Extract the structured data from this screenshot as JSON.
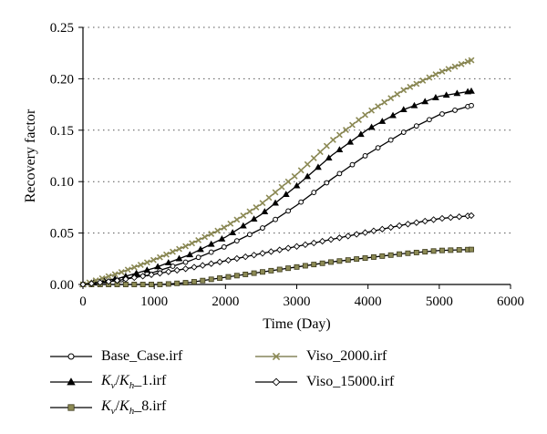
{
  "chart_data": {
    "type": "line",
    "xlabel": "Time (Day)",
    "ylabel": "Recovery factor",
    "xlim": [
      0,
      6000
    ],
    "ylim": [
      0,
      0.25
    ],
    "xticks": [
      0,
      1000,
      2000,
      3000,
      4000,
      5000,
      6000
    ],
    "yticks": [
      0.0,
      0.05,
      0.1,
      0.15,
      0.2,
      0.25
    ],
    "xtick_labels": [
      "0",
      "1000",
      "2000",
      "3000",
      "4000",
      "5000",
      "6000"
    ],
    "ytick_labels": [
      "0.00",
      "0.05",
      "0.10",
      "0.15",
      "0.20",
      "0.25"
    ],
    "grid": "horizontal dotted",
    "legend_position": "bottom",
    "series": [
      {
        "name": "Base_Case.irf",
        "marker": "circle",
        "marker_fill": "#ffffff",
        "color": "#000000",
        "x": [
          0,
          500,
          1000,
          1500,
          2000,
          2500,
          3000,
          3500,
          4000,
          4500,
          5000,
          5450
        ],
        "y": [
          0.0,
          0.004,
          0.012,
          0.023,
          0.037,
          0.054,
          0.077,
          0.103,
          0.127,
          0.148,
          0.165,
          0.174
        ]
      },
      {
        "name": "K_v/K_h_1.irf",
        "marker": "triangle",
        "marker_fill": "#000000",
        "color": "#000000",
        "x": [
          0,
          500,
          1000,
          1500,
          2000,
          2500,
          3000,
          3500,
          4000,
          4500,
          5000,
          5450
        ],
        "y": [
          0.0,
          0.006,
          0.016,
          0.029,
          0.046,
          0.068,
          0.096,
          0.126,
          0.151,
          0.17,
          0.183,
          0.188
        ]
      },
      {
        "name": "K_v/K_h_8.irf",
        "marker": "square",
        "marker_fill": "#8c8a55",
        "color": "#000000",
        "x": [
          0,
          500,
          1000,
          1100,
          1500,
          2000,
          2500,
          3000,
          3500,
          4000,
          4500,
          5000,
          5450
        ],
        "y": [
          0.0,
          0.0,
          0.0,
          0.0,
          0.002,
          0.007,
          0.012,
          0.017,
          0.022,
          0.026,
          0.03,
          0.033,
          0.034
        ]
      },
      {
        "name": "Viso_2000.irf",
        "marker": "x",
        "marker_fill": "#8c8a55",
        "color": "#8c8a55",
        "x": [
          0,
          500,
          1000,
          1500,
          2000,
          2500,
          3000,
          3500,
          4000,
          4500,
          5000,
          5450
        ],
        "y": [
          0.0,
          0.011,
          0.024,
          0.039,
          0.056,
          0.078,
          0.107,
          0.14,
          0.167,
          0.189,
          0.206,
          0.218
        ]
      },
      {
        "name": "Viso_15000.irf",
        "marker": "diamond",
        "marker_fill": "#ffffff",
        "color": "#000000",
        "x": [
          0,
          500,
          1000,
          1500,
          2000,
          2500,
          3000,
          3500,
          4000,
          4500,
          5000,
          5450
        ],
        "y": [
          0.0,
          0.004,
          0.01,
          0.016,
          0.023,
          0.03,
          0.037,
          0.044,
          0.051,
          0.058,
          0.064,
          0.067
        ]
      }
    ]
  },
  "legend": {
    "base_case": "Base_Case.irf",
    "kvkh1_suffix": "_1.irf",
    "kvkh8_suffix": "_8.irf",
    "viso2000": "Viso_2000.irf",
    "viso15000": "Viso_15000.irf",
    "k": "K",
    "v": "v",
    "h": "h",
    "slash": "/"
  }
}
